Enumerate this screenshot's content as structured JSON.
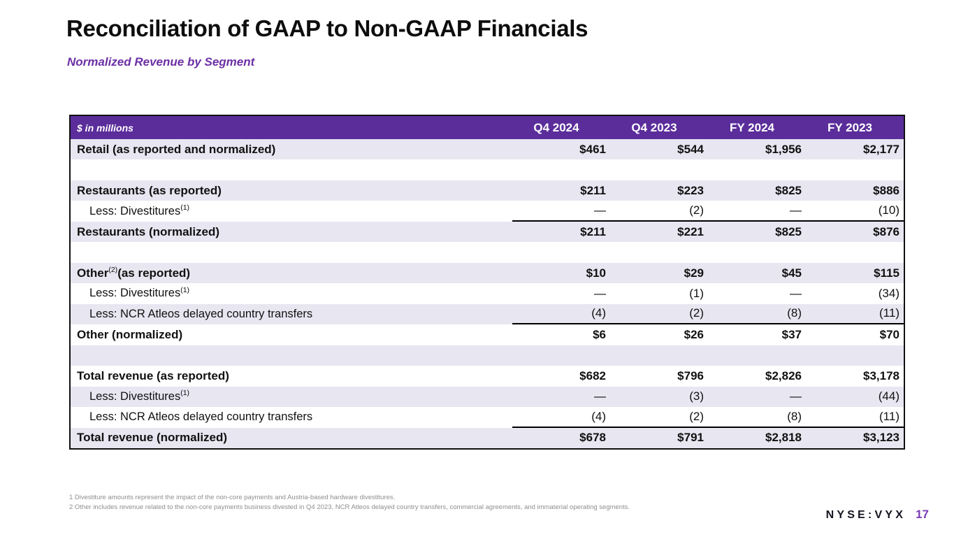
{
  "slide": {
    "title": "Reconciliation of GAAP to Non-GAAP Financials",
    "subtitle": "Normalized Revenue by Segment",
    "ticker": "NYSE:VYX",
    "page_number": "17"
  },
  "table": {
    "unit_label": "$ in millions",
    "columns": [
      "Q4 2024",
      "Q4 2023",
      "FY 2024",
      "FY 2023"
    ],
    "rows": [
      {
        "pre": "Retail (as reported and normalized)",
        "sup": "",
        "post": "",
        "bold": true,
        "indent": false,
        "sumline": false,
        "spacer": false,
        "values": [
          "$461",
          "$544",
          "$1,956",
          "$2,177"
        ]
      },
      {
        "spacer": true
      },
      {
        "pre": "Restaurants (as reported)",
        "sup": "",
        "post": "",
        "bold": true,
        "indent": false,
        "sumline": false,
        "spacer": false,
        "values": [
          "$211",
          "$223",
          "$825",
          "$886"
        ]
      },
      {
        "pre": "Less: Divestitures",
        "sup": "(1)",
        "post": "",
        "bold": false,
        "indent": true,
        "sumline": true,
        "spacer": false,
        "values": [
          "—",
          "(2)",
          "—",
          "(10)"
        ]
      },
      {
        "pre": "Restaurants (normalized)",
        "sup": "",
        "post": "",
        "bold": true,
        "indent": false,
        "sumline": false,
        "spacer": false,
        "values": [
          "$211",
          "$221",
          "$825",
          "$876"
        ]
      },
      {
        "spacer": true
      },
      {
        "pre": "Other",
        "sup": "(2)",
        "post": " (as reported)",
        "bold": true,
        "indent": false,
        "sumline": false,
        "spacer": false,
        "values": [
          "$10",
          "$29",
          "$45",
          "$115"
        ]
      },
      {
        "pre": "Less: Divestitures",
        "sup": "(1)",
        "post": "",
        "bold": false,
        "indent": true,
        "sumline": false,
        "spacer": false,
        "values": [
          "—",
          "(1)",
          "—",
          "(34)"
        ]
      },
      {
        "pre": "Less: NCR Atleos delayed country transfers",
        "sup": "",
        "post": "",
        "bold": false,
        "indent": true,
        "sumline": true,
        "spacer": false,
        "values": [
          "(4)",
          "(2)",
          "(8)",
          "(11)"
        ]
      },
      {
        "pre": "Other (normalized)",
        "sup": "",
        "post": "",
        "bold": true,
        "indent": false,
        "sumline": false,
        "spacer": false,
        "values": [
          "$6",
          "$26",
          "$37",
          "$70"
        ]
      },
      {
        "spacer": true
      },
      {
        "pre": "Total revenue (as reported)",
        "sup": "",
        "post": "",
        "bold": true,
        "indent": false,
        "sumline": false,
        "spacer": false,
        "values": [
          "$682",
          "$796",
          "$2,826",
          "$3,178"
        ]
      },
      {
        "pre": "Less: Divestitures",
        "sup": "(1)",
        "post": "",
        "bold": false,
        "indent": true,
        "sumline": false,
        "spacer": false,
        "values": [
          "—",
          "(3)",
          "—",
          "(44)"
        ]
      },
      {
        "pre": "Less: NCR Atleos delayed country transfers",
        "sup": "",
        "post": "",
        "bold": false,
        "indent": true,
        "sumline": true,
        "spacer": false,
        "values": [
          "(4)",
          "(2)",
          "(8)",
          "(11)"
        ]
      },
      {
        "pre": "Total revenue (normalized)",
        "sup": "",
        "post": "",
        "bold": true,
        "indent": false,
        "sumline": false,
        "spacer": false,
        "values": [
          "$678",
          "$791",
          "$2,818",
          "$3,123"
        ]
      }
    ]
  },
  "footnotes": [
    "1 Divestiture amounts represent the impact of the non-core payments and Austria-based hardware divestitures.",
    "2 Other includes revenue related to the non-core payments business divested in Q4 2023, NCR Atleos delayed country transfers, commercial agreements, and immaterial operating segments."
  ],
  "colors": {
    "brand_purple": "#5B2D9B",
    "row_lavender": "#E7E6F1",
    "subtitle_purple": "#6C2FA5",
    "page_number_purple": "#7A3DB8",
    "footnote_gray": "#8E8E8E"
  }
}
